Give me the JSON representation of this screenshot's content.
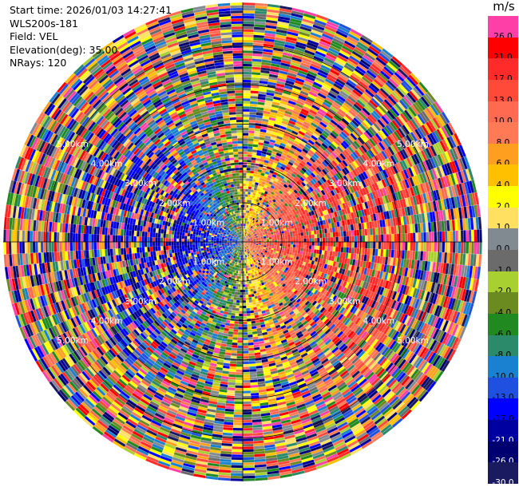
{
  "info": {
    "start_time": "Start time: 2026/01/03 14:27:41",
    "instrument": "WLS200s-181",
    "field": "Field: VEL",
    "elevation": "Elevation(deg): 35.00",
    "nrays": "NRays: 120"
  },
  "colorbar": {
    "unit": "m/s",
    "levels": [
      {
        "label": "26.0",
        "color": "#ff3fa8",
        "text": "#000000"
      },
      {
        "label": "21.0",
        "color": "#ff0000",
        "text": "#000000"
      },
      {
        "label": "17.0",
        "color": "#ff2a2a",
        "text": "#000000"
      },
      {
        "label": "13.0",
        "color": "#ff4a3a",
        "text": "#000000"
      },
      {
        "label": "10.0",
        "color": "#ff6a50",
        "text": "#000000"
      },
      {
        "label": "8.0",
        "color": "#ff7a55",
        "text": "#000000"
      },
      {
        "label": "6.0",
        "color": "#ff9f20",
        "text": "#000000"
      },
      {
        "label": "4.0",
        "color": "#ffc000",
        "text": "#000000"
      },
      {
        "label": "2.0",
        "color": "#ffff00",
        "text": "#000000"
      },
      {
        "label": "1.0",
        "color": "#ffe060",
        "text": "#000000"
      },
      {
        "label": "0.0",
        "color": "#808a90",
        "text": "#000000"
      },
      {
        "label": "-1.0",
        "color": "#6b6b6b",
        "text": "#000000"
      },
      {
        "label": "-2.0",
        "color": "#a8d030",
        "text": "#000000"
      },
      {
        "label": "-4.0",
        "color": "#6b8a20",
        "text": "#000000"
      },
      {
        "label": "-6.0",
        "color": "#208a20",
        "text": "#000000"
      },
      {
        "label": "-8.0",
        "color": "#2a8a6a",
        "text": "#000000"
      },
      {
        "label": "-10.0",
        "color": "#1a80d0",
        "text": "#000000"
      },
      {
        "label": "-13.0",
        "color": "#2050e0",
        "text": "#000000"
      },
      {
        "label": "-17.0",
        "color": "#0000ff",
        "text": "#000000"
      },
      {
        "label": "-21.0",
        "color": "#0000a0",
        "text": "#ffffff"
      },
      {
        "label": "-26.0",
        "color": "#000070",
        "text": "#ffffff"
      },
      {
        "label": "-30.0",
        "color": "#1a1a60",
        "text": "#ffffff"
      }
    ]
  },
  "range_rings": [
    {
      "range_km": 1,
      "label": "1.00km"
    },
    {
      "range_km": 2,
      "label": "2.00km"
    },
    {
      "range_km": 3,
      "label": "3.00km"
    },
    {
      "range_km": 4,
      "label": "4.00km"
    },
    {
      "range_km": 5,
      "label": "5.00km"
    }
  ],
  "scan": {
    "max_range_km": 6.1,
    "n_rays": 120
  }
}
